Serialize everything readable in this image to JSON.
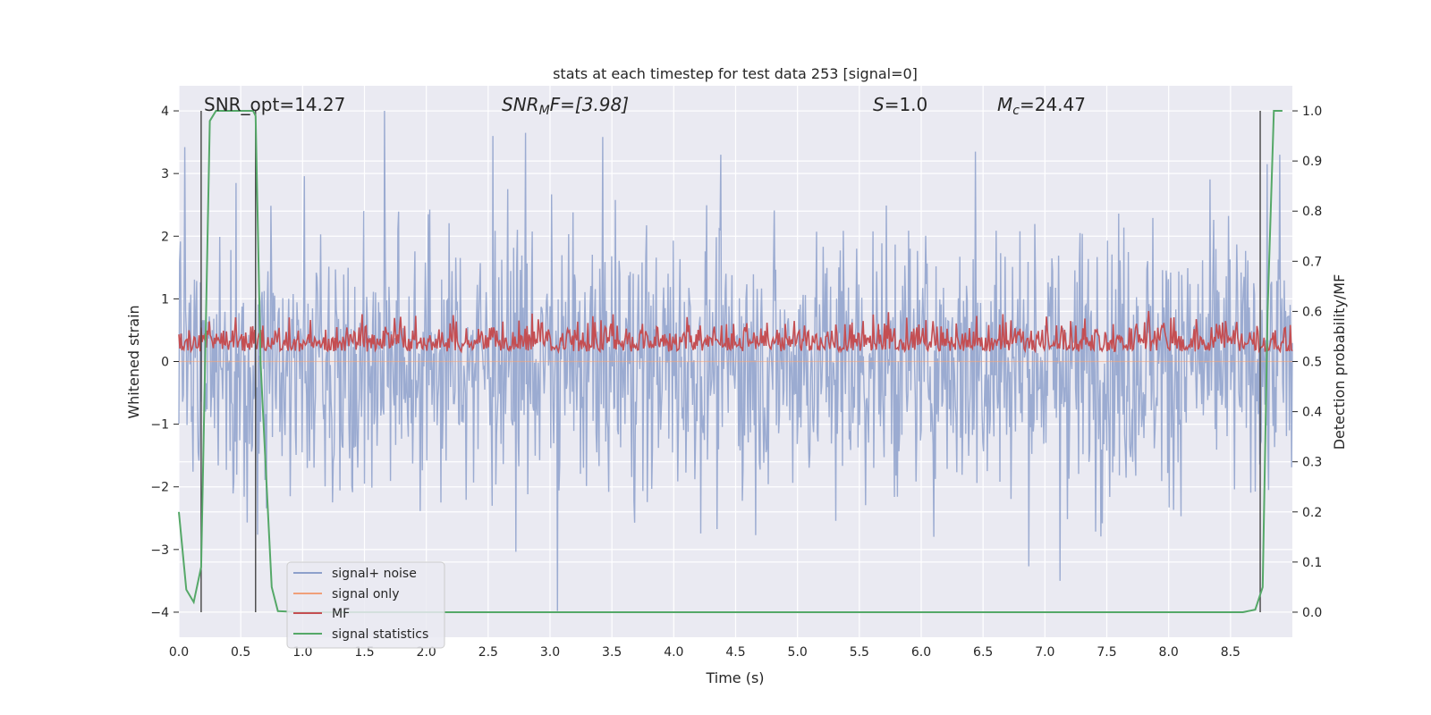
{
  "chart_data": {
    "type": "line",
    "title": "stats at each timestep for test data 253 [signal=0]",
    "xlabel": "Time (s)",
    "ylabel": "Whitened strain",
    "y2label": "Detection probability/MF",
    "xlim": [
      0.0,
      9.0
    ],
    "ylim": [
      -4.4,
      4.4
    ],
    "y2lim": [
      -0.05,
      1.05
    ],
    "x_ticks": [
      0.0,
      0.5,
      1.0,
      1.5,
      2.0,
      2.5,
      3.0,
      3.5,
      4.0,
      4.5,
      5.0,
      5.5,
      6.0,
      6.5,
      7.0,
      7.5,
      8.0,
      8.5
    ],
    "x_tick_labels": [
      "0.0",
      "0.5",
      "1.0",
      "1.5",
      "2.0",
      "2.5",
      "3.0",
      "3.5",
      "4.0",
      "4.5",
      "5.0",
      "5.5",
      "6.0",
      "6.5",
      "7.0",
      "7.5",
      "8.0",
      "8.5"
    ],
    "y_ticks": [
      -4,
      -3,
      -2,
      -1,
      0,
      1,
      2,
      3,
      4
    ],
    "y_tick_labels": [
      "−4",
      "−3",
      "−2",
      "−1",
      "0",
      "1",
      "2",
      "3",
      "4"
    ],
    "y2_ticks": [
      0.0,
      0.1,
      0.2,
      0.3,
      0.4,
      0.5,
      0.6,
      0.7,
      0.8,
      0.9,
      1.0
    ],
    "y2_tick_labels": [
      "0.0",
      "0.1",
      "0.2",
      "0.3",
      "0.4",
      "0.5",
      "0.6",
      "0.7",
      "0.8",
      "0.9",
      "1.0"
    ],
    "grid": true,
    "legend_position": "lower-left",
    "annotations": {
      "snr_opt": "SNR_opt=14.27",
      "snr_mf_prefix": "SNR",
      "snr_mf_sub": "M",
      "snr_mf_rest": "F=[3.98]",
      "s_var": "S",
      "s_rest": "=1.0",
      "mc_var": "M",
      "mc_sub": "c",
      "mc_rest": "=24.47"
    },
    "vertical_markers_x": [
      0.18,
      0.62,
      8.74
    ],
    "series": [
      {
        "name": "signal+ noise",
        "color": "#8da0cb",
        "kind": "noise",
        "approx_range": [
          -3.98,
          4.0
        ],
        "notable_peaks": [
          {
            "x": 1.66,
            "y": 4.0
          },
          {
            "x": 3.06,
            "y": -3.98
          },
          {
            "x": 7.12,
            "y": -3.5
          },
          {
            "x": 0.46,
            "y": 2.85
          },
          {
            "x": 2.54,
            "y": 3.6
          },
          {
            "x": 2.8,
            "y": 3.65
          },
          {
            "x": 4.38,
            "y": 3.3
          },
          {
            "x": 6.44,
            "y": 3.35
          },
          {
            "x": 8.9,
            "y": 3.3
          }
        ]
      },
      {
        "name": "signal only",
        "color": "#f0a07a",
        "kind": "flat",
        "values_y": 0
      },
      {
        "name": "MF",
        "color": "#c44e52",
        "kind": "mf",
        "approx_range_y2": [
          0.5,
          0.62
        ]
      },
      {
        "name": "signal statistics",
        "color": "#55a868",
        "kind": "prob",
        "x": [
          0.0,
          0.06,
          0.12,
          0.18,
          0.25,
          0.3,
          0.4,
          0.5,
          0.6,
          0.62,
          0.66,
          0.7,
          0.75,
          0.8,
          1.0,
          2.0,
          3.0,
          4.0,
          5.0,
          6.0,
          7.0,
          8.0,
          8.6,
          8.7,
          8.76,
          8.8,
          8.85,
          8.92
        ],
        "y": [
          0.2,
          0.045,
          0.02,
          0.09,
          0.98,
          1.0,
          1.0,
          1.0,
          1.0,
          0.99,
          0.5,
          0.3,
          0.05,
          0.002,
          0.0,
          0.0,
          0.0,
          0.0,
          0.0,
          0.0,
          0.0,
          0.0,
          0.0,
          0.005,
          0.05,
          0.6,
          1.0,
          1.0
        ]
      }
    ]
  }
}
